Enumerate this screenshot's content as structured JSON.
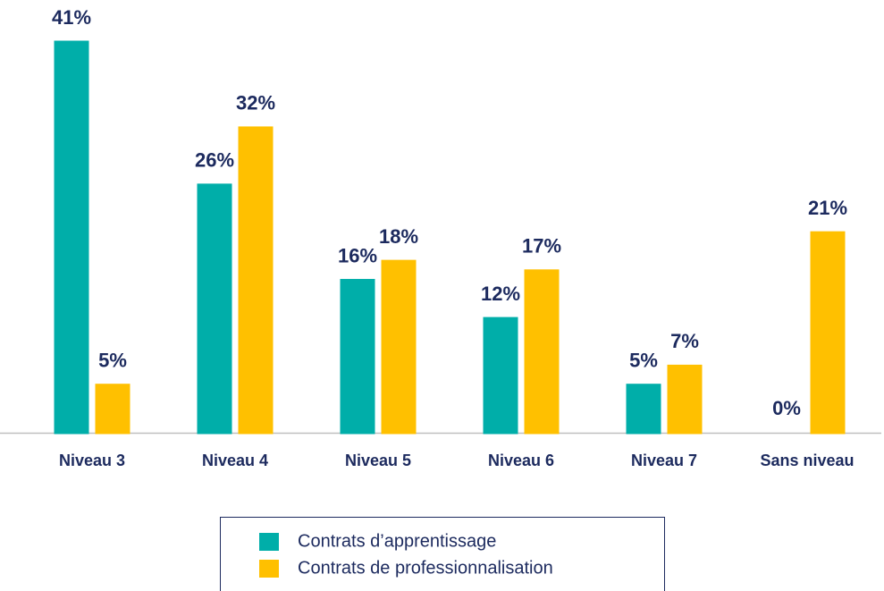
{
  "chart_data": {
    "type": "bar",
    "categories": [
      "Niveau 3",
      "Niveau 4",
      "Niveau 5",
      "Niveau 6",
      "Niveau 7",
      "Sans niveau"
    ],
    "series": [
      {
        "name": "Contrats d’apprentissage",
        "color": "#00aea9",
        "values": [
          41,
          26,
          16,
          12,
          5,
          0
        ],
        "value_labels": [
          "41%",
          "26%",
          "16%",
          "12%",
          "5%",
          "0%"
        ]
      },
      {
        "name": "Contrats de professionnalisation",
        "color": "#ffc000",
        "values": [
          5,
          32,
          18,
          17,
          7,
          21
        ],
        "value_labels": [
          "5%",
          "32%",
          "18%",
          "17%",
          "7%",
          "21%"
        ]
      }
    ],
    "legend": "bottom"
  }
}
